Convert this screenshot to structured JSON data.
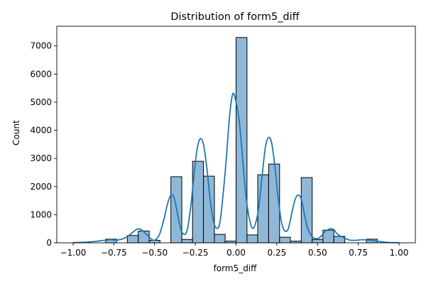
{
  "chart_data": {
    "type": "bar",
    "title": "Distribution of form5_diff",
    "xlabel": "form5_diff",
    "ylabel": "Count",
    "xlim": [
      -1.1,
      1.1
    ],
    "ylim": [
      0,
      7700
    ],
    "x_ticks": [
      -1.0,
      -0.75,
      -0.5,
      -0.25,
      0.0,
      0.25,
      0.5,
      0.75,
      1.0
    ],
    "x_tick_labels": [
      "−1.00",
      "−0.75",
      "−0.50",
      "−0.25",
      "0.00",
      "0.25",
      "0.50",
      "0.75",
      "1.00"
    ],
    "y_ticks": [
      0,
      1000,
      2000,
      3000,
      4000,
      5000,
      6000,
      7000
    ],
    "y_tick_labels": [
      "0",
      "1000",
      "2000",
      "3000",
      "4000",
      "5000",
      "6000",
      "7000"
    ],
    "grid": false,
    "bar_color": "#8fb8d8",
    "bar_edge_color": "#000000",
    "kde_color": "#1f77b4",
    "bins": [
      {
        "x0": -0.8,
        "x1": -0.733,
        "count": 130
      },
      {
        "x0": -0.667,
        "x1": -0.6,
        "count": 260
      },
      {
        "x0": -0.6,
        "x1": -0.533,
        "count": 420
      },
      {
        "x0": -0.533,
        "x1": -0.467,
        "count": 90
      },
      {
        "x0": -0.4,
        "x1": -0.333,
        "count": 2350
      },
      {
        "x0": -0.333,
        "x1": -0.267,
        "count": 120
      },
      {
        "x0": -0.267,
        "x1": -0.2,
        "count": 2900
      },
      {
        "x0": -0.2,
        "x1": -0.133,
        "count": 2370
      },
      {
        "x0": -0.133,
        "x1": -0.067,
        "count": 300
      },
      {
        "x0": -0.067,
        "x1": 0.0,
        "count": 60
      },
      {
        "x0": 0.0,
        "x1": 0.067,
        "count": 7300
      },
      {
        "x0": 0.067,
        "x1": 0.133,
        "count": 280
      },
      {
        "x0": 0.133,
        "x1": 0.2,
        "count": 2420
      },
      {
        "x0": 0.2,
        "x1": 0.267,
        "count": 2800
      },
      {
        "x0": 0.267,
        "x1": 0.333,
        "count": 200
      },
      {
        "x0": 0.333,
        "x1": 0.4,
        "count": 60
      },
      {
        "x0": 0.4,
        "x1": 0.467,
        "count": 2320
      },
      {
        "x0": 0.467,
        "x1": 0.533,
        "count": 120
      },
      {
        "x0": 0.533,
        "x1": 0.6,
        "count": 450
      },
      {
        "x0": 0.6,
        "x1": 0.667,
        "count": 230
      },
      {
        "x0": 0.8,
        "x1": 0.867,
        "count": 130
      }
    ],
    "kde": {
      "x": [
        -1.0,
        -0.95,
        -0.9,
        -0.85,
        -0.8,
        -0.77,
        -0.74,
        -0.7,
        -0.66,
        -0.62,
        -0.6,
        -0.58,
        -0.55,
        -0.52,
        -0.5,
        -0.47,
        -0.44,
        -0.42,
        -0.4,
        -0.38,
        -0.36,
        -0.34,
        -0.32,
        -0.3,
        -0.28,
        -0.26,
        -0.24,
        -0.22,
        -0.2,
        -0.18,
        -0.16,
        -0.14,
        -0.12,
        -0.1,
        -0.08,
        -0.06,
        -0.04,
        -0.02,
        0.0,
        0.02,
        0.04,
        0.06,
        0.08,
        0.1,
        0.12,
        0.14,
        0.16,
        0.18,
        0.2,
        0.22,
        0.24,
        0.26,
        0.28,
        0.3,
        0.32,
        0.34,
        0.36,
        0.38,
        0.4,
        0.42,
        0.44,
        0.47,
        0.5,
        0.52,
        0.55,
        0.58,
        0.6,
        0.62,
        0.66,
        0.7,
        0.74,
        0.77,
        0.8,
        0.85,
        0.9,
        0.95,
        1.0
      ],
      "y": [
        5,
        15,
        30,
        60,
        95,
        110,
        100,
        130,
        250,
        440,
        500,
        460,
        300,
        140,
        90,
        300,
        900,
        1400,
        1700,
        1600,
        1050,
        500,
        300,
        450,
        1200,
        2300,
        3300,
        3700,
        3500,
        2700,
        1600,
        800,
        520,
        700,
        1700,
        3000,
        4500,
        5300,
        5000,
        4300,
        3000,
        1700,
        900,
        520,
        700,
        1300,
        2400,
        3400,
        3750,
        3500,
        2600,
        1500,
        700,
        420,
        500,
        1000,
        1500,
        1700,
        1550,
        1000,
        500,
        200,
        150,
        220,
        420,
        500,
        470,
        320,
        180,
        95,
        90,
        110,
        100,
        70,
        30,
        10,
        5
      ]
    }
  }
}
